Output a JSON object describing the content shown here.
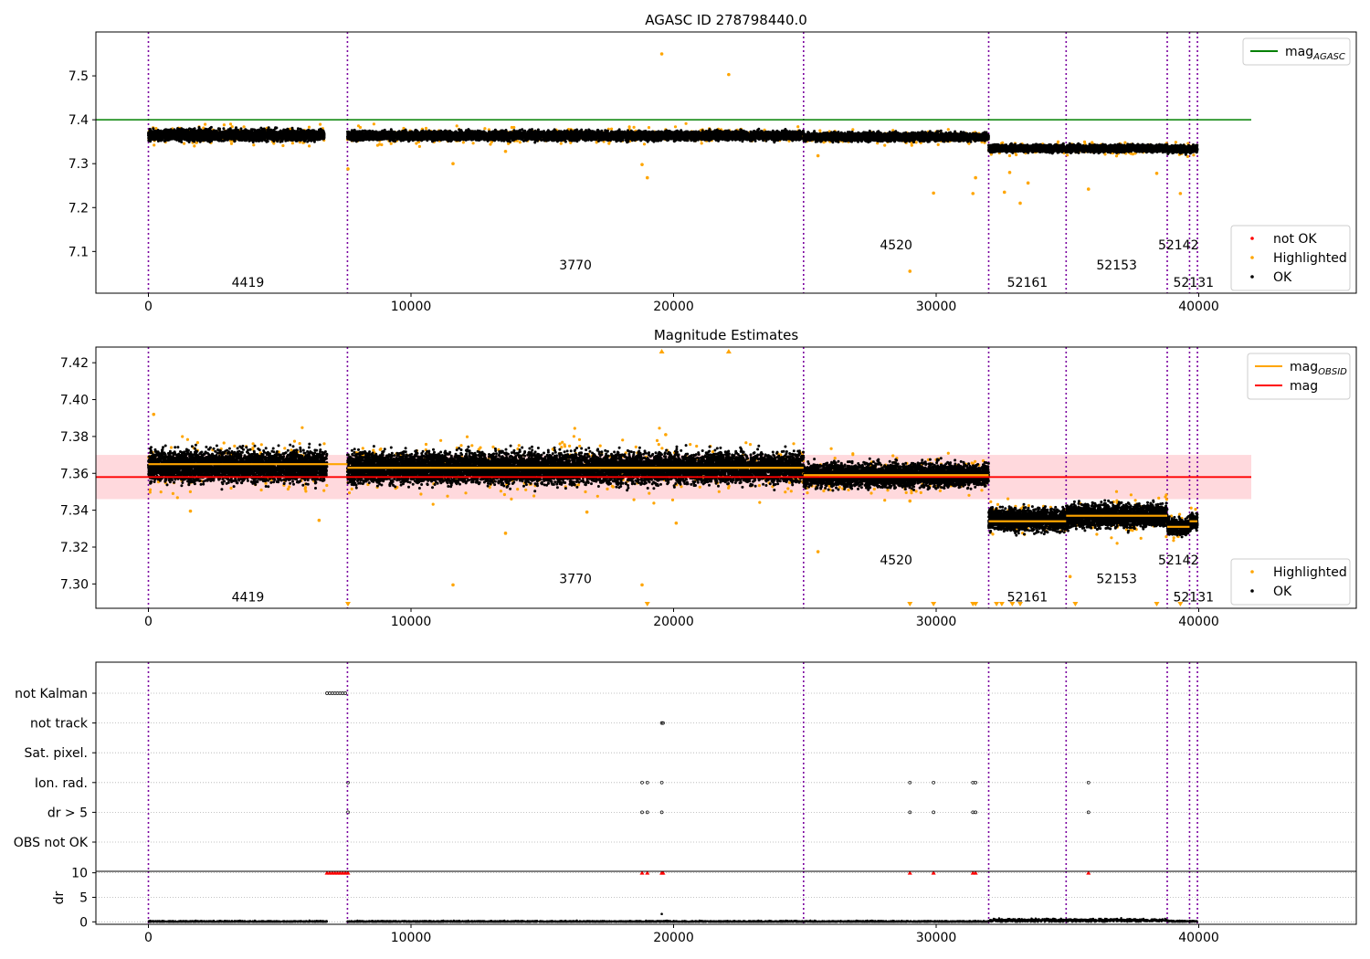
{
  "figure_title": "AGASC ID 278798440.0",
  "colors": {
    "purple_line": "#7b00a0",
    "orange": "#ffa500",
    "black": "#000000",
    "red": "#ff0000",
    "green": "#008000",
    "band": "#ffd9dd",
    "grid": "#b0b0b0"
  },
  "obsids": [
    {
      "label": "4419",
      "start": 0,
      "end": 7580
    },
    {
      "label": "3770",
      "start": 7580,
      "end": 24950
    },
    {
      "label": "4520",
      "start": 24950,
      "end": 32000
    },
    {
      "label": "52161",
      "start": 32000,
      "end": 34950
    },
    {
      "label": "52153",
      "start": 34950,
      "end": 38800
    },
    {
      "label": "52142",
      "start": 38800,
      "end": 39650
    },
    {
      "label": "52131",
      "start": 39650,
      "end": 39950
    }
  ],
  "chart_data": [
    {
      "type": "scatter",
      "title": "",
      "xlim": [
        -2000,
        46000
      ],
      "ylim": [
        7.005,
        7.6
      ],
      "yticks": [
        7.1,
        7.2,
        7.3,
        7.4,
        7.5
      ],
      "xticks": [
        0,
        10000,
        20000,
        30000,
        40000
      ],
      "obsid_label_y": [
        7.03,
        7.07,
        7.115,
        7.03,
        7.07,
        7.115,
        7.03
      ],
      "mag_agasc": {
        "value": 7.4,
        "x_range": [
          -2000,
          42000
        ]
      },
      "ok_segments": [
        {
          "x": [
            0,
            6700
          ],
          "center": 7.365,
          "spread": 0.012
        },
        {
          "x": [
            7580,
            24950
          ],
          "center": 7.364,
          "spread": 0.01
        },
        {
          "x": [
            24950,
            32000
          ],
          "center": 7.361,
          "spread": 0.009
        },
        {
          "x": [
            32000,
            38800
          ],
          "center": 7.335,
          "spread": 0.008
        },
        {
          "x": [
            38800,
            39950
          ],
          "center": 7.333,
          "spread": 0.008
        }
      ],
      "highlighted_outliers": [
        {
          "x": 19550,
          "y": 7.55
        },
        {
          "x": 22100,
          "y": 7.503
        },
        {
          "x": 11600,
          "y": 7.3
        },
        {
          "x": 18800,
          "y": 7.298
        },
        {
          "x": 19000,
          "y": 7.268
        },
        {
          "x": 13600,
          "y": 7.328
        },
        {
          "x": 25500,
          "y": 7.318
        },
        {
          "x": 29900,
          "y": 7.233
        },
        {
          "x": 31400,
          "y": 7.232
        },
        {
          "x": 31500,
          "y": 7.268
        },
        {
          "x": 32800,
          "y": 7.28
        },
        {
          "x": 33200,
          "y": 7.21
        },
        {
          "x": 33500,
          "y": 7.256
        },
        {
          "x": 35800,
          "y": 7.242
        },
        {
          "x": 38400,
          "y": 7.278
        },
        {
          "x": 39300,
          "y": 7.232
        },
        {
          "x": 29000,
          "y": 7.055
        },
        {
          "x": 7600,
          "y": 7.288
        },
        {
          "x": 32600,
          "y": 7.235
        }
      ],
      "legend": [
        {
          "label": "mag",
          "subscript": "AGASC",
          "kind": "line",
          "color": "#008000"
        }
      ],
      "legend2": [
        {
          "label": "not OK",
          "kind": "marker",
          "color": "#ff0000"
        },
        {
          "label": "Highlighted",
          "kind": "marker",
          "color": "#ffa500"
        },
        {
          "label": "OK",
          "kind": "marker",
          "color": "#000000"
        }
      ]
    },
    {
      "type": "scatter",
      "title": "Magnitude Estimates",
      "xlim": [
        -2000,
        46000
      ],
      "ylim": [
        7.2868,
        7.4285
      ],
      "yticks": [
        7.3,
        7.32,
        7.34,
        7.36,
        7.38,
        7.4,
        7.42
      ],
      "xticks": [
        0,
        10000,
        20000,
        30000,
        40000
      ],
      "obsid_label_y": [
        7.293,
        7.303,
        7.313,
        7.293,
        7.303,
        7.313,
        7.293
      ],
      "mag": {
        "value": 7.358,
        "x_range": [
          -2000,
          42000
        ],
        "band": [
          7.346,
          7.37
        ]
      },
      "mag_obsid": [
        {
          "x": [
            0,
            6800
          ],
          "y": 7.365
        },
        {
          "x": [
            6800,
            7580
          ],
          "y": 7.365
        },
        {
          "x": [
            7580,
            24950
          ],
          "y": 7.363
        },
        {
          "x": [
            24950,
            32000
          ],
          "y": 7.359
        },
        {
          "x": [
            32000,
            34950
          ],
          "y": 7.334
        },
        {
          "x": [
            34950,
            38800
          ],
          "y": 7.337
        },
        {
          "x": [
            38800,
            39650
          ],
          "y": 7.331
        },
        {
          "x": [
            39650,
            39950
          ],
          "y": 7.334
        }
      ],
      "ok_segments": [
        {
          "x": [
            0,
            6800
          ],
          "center": 7.364,
          "spread": 0.008
        },
        {
          "x": [
            7580,
            24950
          ],
          "center": 7.363,
          "spread": 0.008
        },
        {
          "x": [
            24950,
            32000
          ],
          "center": 7.359,
          "spread": 0.006
        },
        {
          "x": [
            32000,
            34950
          ],
          "center": 7.335,
          "spread": 0.006
        },
        {
          "x": [
            34950,
            38800
          ],
          "center": 7.337,
          "spread": 0.006
        },
        {
          "x": [
            38800,
            39650
          ],
          "center": 7.331,
          "spread": 0.004
        },
        {
          "x": [
            39650,
            39950
          ],
          "center": 7.334,
          "spread": 0.004
        }
      ],
      "highlighted_outliers": [
        {
          "x": 11600,
          "y": 7.2995
        },
        {
          "x": 18800,
          "y": 7.2995
        },
        {
          "x": 13600,
          "y": 7.3275
        },
        {
          "x": 1600,
          "y": 7.3395
        },
        {
          "x": 6500,
          "y": 7.3345
        },
        {
          "x": 20100,
          "y": 7.333
        },
        {
          "x": 16700,
          "y": 7.339
        },
        {
          "x": 25500,
          "y": 7.3175
        },
        {
          "x": 35100,
          "y": 7.304
        },
        {
          "x": 29000,
          "y": 7.345
        },
        {
          "x": 19700,
          "y": 7.381
        },
        {
          "x": 200,
          "y": 7.392
        }
      ],
      "triangles_top": [
        19550,
        22100
      ],
      "triangles_bottom": [
        7600,
        19000,
        29000,
        29900,
        31400,
        31500,
        32300,
        32500,
        32900,
        33200,
        35300,
        38400,
        39300
      ],
      "legend": [
        {
          "label": "mag",
          "subscript": "OBSID",
          "kind": "line",
          "color": "#ffa500"
        },
        {
          "label": "mag",
          "subscript": "",
          "kind": "line",
          "color": "#ff0000"
        }
      ],
      "legend2": [
        {
          "label": "Highlighted",
          "kind": "marker",
          "color": "#ffa500"
        },
        {
          "label": "OK",
          "kind": "marker",
          "color": "#000000"
        }
      ]
    },
    {
      "type": "scatter",
      "title": "",
      "xlim": [
        -2000,
        46000
      ],
      "xticks": [
        0,
        10000,
        20000,
        30000,
        40000
      ],
      "flag_labels": [
        "not Kalman",
        "not track",
        "Sat. pixel.",
        "Ion. rad.",
        "dr > 5",
        "OBS not OK"
      ],
      "flags": {
        "not Kalman": [
          6800,
          6900,
          7000,
          7100,
          7200,
          7300,
          7400,
          7500
        ],
        "not track": [
          19550,
          19600
        ],
        "Sat. pixel.": [],
        "Ion. rad.": [
          7600,
          18800,
          19000,
          19550,
          29000,
          29900,
          31400,
          31500,
          35800
        ],
        "dr > 5": [
          7600,
          18800,
          19000,
          19550,
          29000,
          29900,
          31400,
          31500,
          35800
        ],
        "OBS not OK": []
      },
      "dr_ylim": [
        -0.5,
        10.3
      ],
      "dr_yticks": [
        0,
        5,
        10
      ],
      "dr_ylabel": "dr",
      "dr_high": [
        6800,
        6900,
        7000,
        7100,
        7200,
        7300,
        7400,
        7500,
        7600,
        18800,
        19000,
        19550,
        19600,
        29000,
        29900,
        31400,
        31500,
        35800
      ],
      "dr_segments": [
        {
          "x": [
            0,
            6800
          ],
          "center": 0.05,
          "spread": 0.15
        },
        {
          "x": [
            7580,
            32000
          ],
          "center": 0.05,
          "spread": 0.15
        },
        {
          "x": [
            32000,
            38800
          ],
          "center": 0.3,
          "spread": 0.3
        },
        {
          "x": [
            38800,
            39950
          ],
          "center": 0.1,
          "spread": 0.15
        }
      ],
      "dr_points": [
        {
          "x": 19550,
          "y": 1.6
        }
      ]
    }
  ]
}
